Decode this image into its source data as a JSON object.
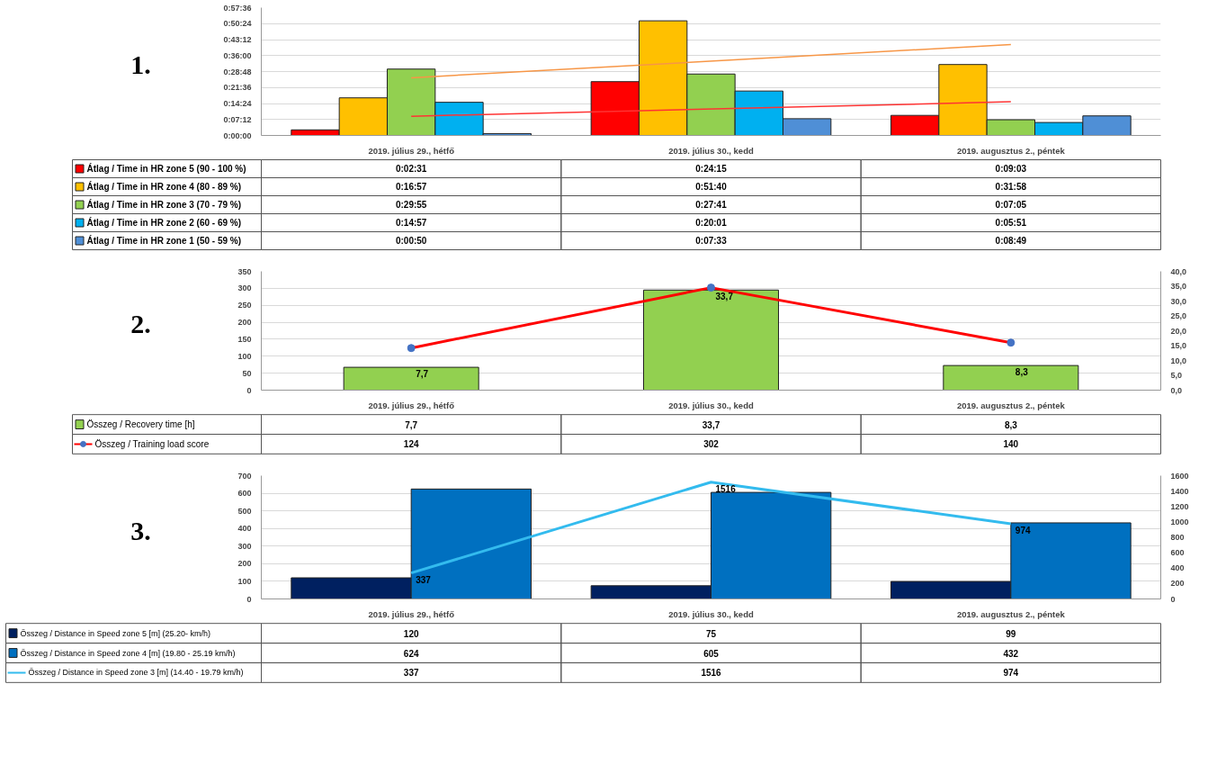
{
  "chart_data": [
    {
      "type": "bar",
      "title": "1.",
      "categories": [
        "2019. július 29., hétfő",
        "2019. július 30., kedd",
        "2019. augusztus 2., péntek"
      ],
      "series": [
        {
          "name": "Átlag / Time in HR zone 5 (90 - 100 %)",
          "color": "#ff0000",
          "values": [
            151,
            1455,
            543
          ],
          "value_labels": [
            "0:02:31",
            "0:24:15",
            "0:09:03"
          ]
        },
        {
          "name": "Átlag / Time in HR zone 4 (80 - 89 %)",
          "color": "#ffc000",
          "values": [
            1017,
            3100,
            1918
          ],
          "value_labels": [
            "0:16:57",
            "0:51:40",
            "0:31:58"
          ]
        },
        {
          "name": "Átlag / Time in HR zone 3 (70 - 79 %)",
          "color": "#92d050",
          "values": [
            1795,
            1661,
            425
          ],
          "value_labels": [
            "0:29:55",
            "0:27:41",
            "0:07:05"
          ]
        },
        {
          "name": "Átlag / Time in HR zone 2 (60 - 69 %)",
          "color": "#00b0f0",
          "values": [
            897,
            1201,
            351
          ],
          "value_labels": [
            "0:14:57",
            "0:20:01",
            "0:05:51"
          ]
        },
        {
          "name": "Átlag / Time in HR zone 1 (50 - 59 %)",
          "color": "#4f8fd6",
          "values": [
            50,
            453,
            529
          ],
          "value_labels": [
            "0:00:50",
            "0:07:33",
            "0:08:49"
          ]
        },
        {
          "type": "line",
          "color": "#f79646",
          "x": [
            "2019. július 29., hétfő",
            "2019. augusztus 2., péntek"
          ],
          "values": [
            1560,
            2460
          ]
        },
        {
          "type": "line",
          "color": "#ff3333",
          "x": [
            "2019. július 29., hétfő",
            "2019. augusztus 2., péntek"
          ],
          "values": [
            520,
            910
          ]
        }
      ],
      "ylim": [
        0,
        3456
      ],
      "yticks": [
        {
          "value": 0,
          "label": "0:00:00"
        },
        {
          "value": 432,
          "label": "0:07:12"
        },
        {
          "value": 864,
          "label": "0:14:24"
        },
        {
          "value": 1296,
          "label": "0:21:36"
        },
        {
          "value": 1728,
          "label": "0:28:48"
        },
        {
          "value": 2160,
          "label": "0:36:00"
        },
        {
          "value": 2592,
          "label": "0:43:12"
        },
        {
          "value": 3024,
          "label": "0:50:24"
        },
        {
          "value": 3456,
          "label": "0:57:36"
        }
      ],
      "grid": "y",
      "legend": "bottom"
    },
    {
      "type": "bar",
      "title": "2.",
      "categories": [
        "2019. július 29., hétfő",
        "2019. július 30., kedd",
        "2019. augusztus 2., péntek"
      ],
      "series": [
        {
          "name": "Összeg / Recovery time [h]",
          "color": "#92d050",
          "axis": "y2",
          "values": [
            7.7,
            33.7,
            8.3
          ],
          "value_labels": [
            "7,7",
            "33,7",
            "8,3"
          ]
        },
        {
          "name": "Összeg / Training load score",
          "type": "line",
          "color": "#ff0000",
          "marker": "circle",
          "colors": [
            "#4472c4",
            "#4472c4",
            "#4472c4"
          ],
          "values": [
            124,
            302,
            140
          ],
          "value_labels": [
            "124",
            "302",
            "140"
          ]
        }
      ],
      "ylim": [
        0,
        350
      ],
      "yticks": [
        0,
        50,
        100,
        150,
        200,
        250,
        300,
        350
      ],
      "y2lim": [
        0,
        40
      ],
      "y2ticks": [
        {
          "value": 0,
          "label": "0,0"
        },
        {
          "value": 5,
          "label": "5,0"
        },
        {
          "value": 10,
          "label": "10,0"
        },
        {
          "value": 15,
          "label": "15,0"
        },
        {
          "value": 20,
          "label": "20,0"
        },
        {
          "value": 25,
          "label": "25,0"
        },
        {
          "value": 30,
          "label": "30,0"
        },
        {
          "value": 35,
          "label": "35,0"
        },
        {
          "value": 40,
          "label": "40,0"
        }
      ],
      "grid": "y",
      "legend": "bottom"
    },
    {
      "type": "bar",
      "title": "3.",
      "categories": [
        "2019. július 29., hétfő",
        "2019. július 30., kedd",
        "2019. augusztus 2., péntek"
      ],
      "series": [
        {
          "name": "Összeg / Distance in Speed zone 5 [m] (25.20- km/h)",
          "color": "#002060",
          "values": [
            120,
            75,
            99
          ],
          "value_labels": [
            "120",
            "75",
            "99"
          ]
        },
        {
          "name": "Összeg / Distance in Speed zone 4 [m] (19.80 - 25.19 km/h)",
          "color": "#0070c0",
          "values": [
            624,
            605,
            432
          ],
          "value_labels": [
            "624",
            "605",
            "432"
          ]
        },
        {
          "name": "Összeg / Distance in Speed zone 3 [m] (14.40 - 19.79 km/h)",
          "type": "line",
          "color": "#33bbee",
          "axis": "y2",
          "values": [
            337,
            1516,
            974
          ],
          "value_labels": [
            "337",
            "1516",
            "974"
          ]
        }
      ],
      "ylim": [
        0,
        700
      ],
      "yticks": [
        0,
        100,
        200,
        300,
        400,
        500,
        600,
        700
      ],
      "y2lim": [
        0,
        1600
      ],
      "y2ticks": [
        0,
        200,
        400,
        600,
        800,
        1000,
        1200,
        1400,
        1600
      ],
      "grid": "y",
      "legend": "bottom"
    }
  ]
}
